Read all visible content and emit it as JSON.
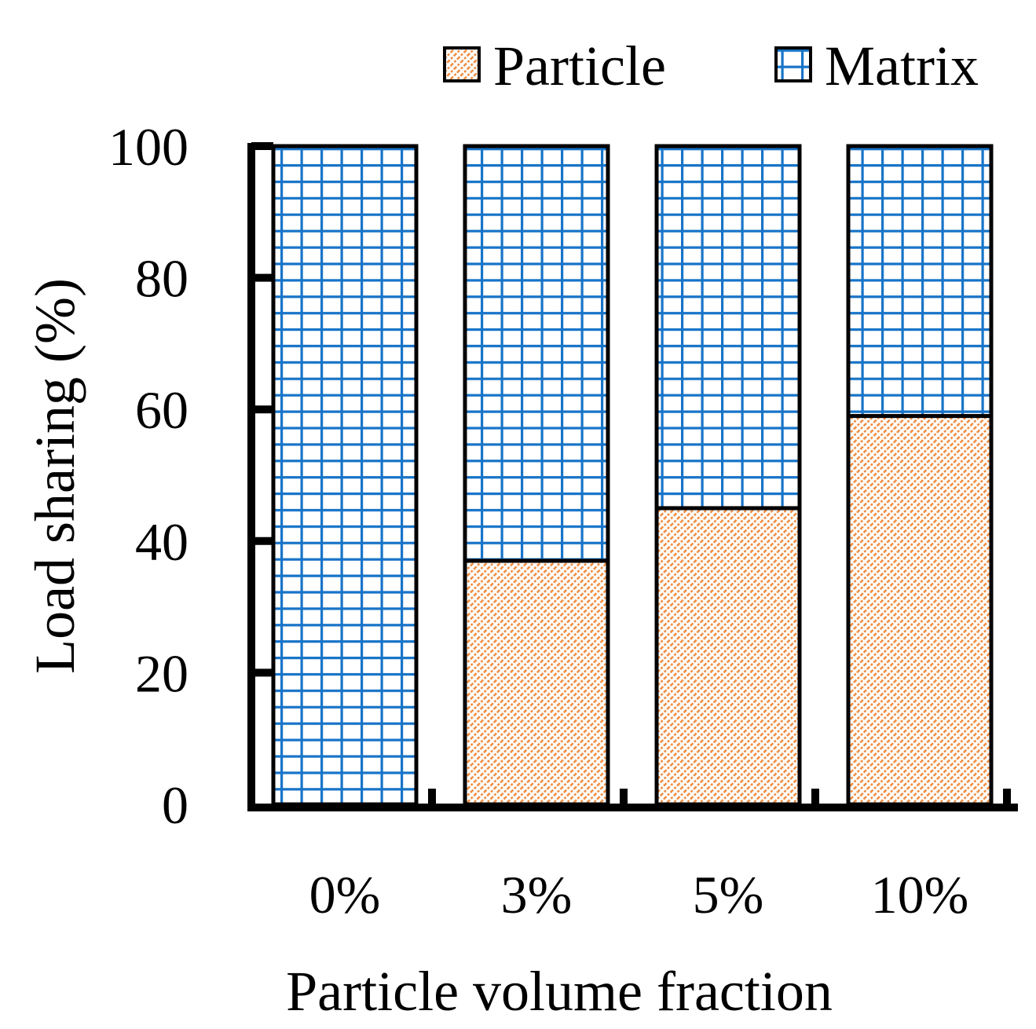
{
  "chart_data": {
    "type": "bar",
    "stacked": true,
    "title": "",
    "xlabel": "Particle volume fraction",
    "ylabel": "Load sharing (%)",
    "ylim": [
      0,
      100
    ],
    "yticks": [
      0,
      20,
      40,
      60,
      80,
      100
    ],
    "categories": [
      "0%",
      "3%",
      "5%",
      "10%"
    ],
    "series": [
      {
        "name": "Particle",
        "values": [
          0,
          37,
          45,
          59
        ],
        "color": "#F08A3C",
        "pattern": "diagonal-hatch"
      },
      {
        "name": "Matrix",
        "values": [
          100,
          63,
          55,
          41
        ],
        "color": "#1874C8",
        "pattern": "grid"
      }
    ],
    "legend_position": "top-right",
    "grid": false
  }
}
